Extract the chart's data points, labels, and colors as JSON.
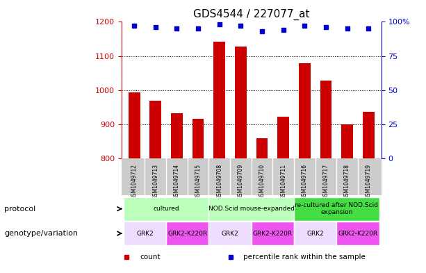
{
  "title": "GDS4544 / 227077_at",
  "samples": [
    "GSM1049712",
    "GSM1049713",
    "GSM1049714",
    "GSM1049715",
    "GSM1049708",
    "GSM1049709",
    "GSM1049710",
    "GSM1049711",
    "GSM1049716",
    "GSM1049717",
    "GSM1049718",
    "GSM1049719"
  ],
  "counts": [
    993,
    968,
    932,
    916,
    1142,
    1128,
    858,
    921,
    1078,
    1028,
    900,
    937
  ],
  "percentiles": [
    97,
    96,
    95,
    95,
    98,
    97,
    93,
    94,
    97,
    96,
    95,
    95
  ],
  "bar_color": "#cc0000",
  "dot_color": "#0000cc",
  "ylim": [
    800,
    1200
  ],
  "yticks": [
    800,
    900,
    1000,
    1100,
    1200
  ],
  "y2lim": [
    0,
    100
  ],
  "y2ticks": [
    0,
    25,
    50,
    75,
    100
  ],
  "y2labels": [
    "0",
    "25",
    "50",
    "75",
    "100%"
  ],
  "grid_color": "black",
  "protocol_row": {
    "label": "protocol",
    "groups": [
      {
        "text": "cultured",
        "start": 0,
        "end": 4,
        "color": "#bbffbb"
      },
      {
        "text": "NOD.Scid mouse-expanded",
        "start": 4,
        "end": 8,
        "color": "#bbffbb"
      },
      {
        "text": "re-cultured after NOD.Scid\nexpansion",
        "start": 8,
        "end": 12,
        "color": "#44dd44"
      }
    ]
  },
  "genotype_row": {
    "label": "genotype/variation",
    "groups": [
      {
        "text": "GRK2",
        "start": 0,
        "end": 2,
        "color": "#eeddff"
      },
      {
        "text": "GRK2-K220R",
        "start": 2,
        "end": 4,
        "color": "#ee55ee"
      },
      {
        "text": "GRK2",
        "start": 4,
        "end": 6,
        "color": "#eeddff"
      },
      {
        "text": "GRK2-K220R",
        "start": 6,
        "end": 8,
        "color": "#ee55ee"
      },
      {
        "text": "GRK2",
        "start": 8,
        "end": 10,
        "color": "#eeddff"
      },
      {
        "text": "GRK2-K220R",
        "start": 10,
        "end": 12,
        "color": "#ee55ee"
      }
    ]
  },
  "legend": [
    {
      "label": "count",
      "color": "#cc0000"
    },
    {
      "label": "percentile rank within the sample",
      "color": "#0000cc"
    }
  ],
  "background_color": "#ffffff",
  "sample_bg_color": "#cccccc",
  "title_fontsize": 11,
  "tick_fontsize": 8,
  "annot_fontsize": 7,
  "label_fontsize": 8
}
